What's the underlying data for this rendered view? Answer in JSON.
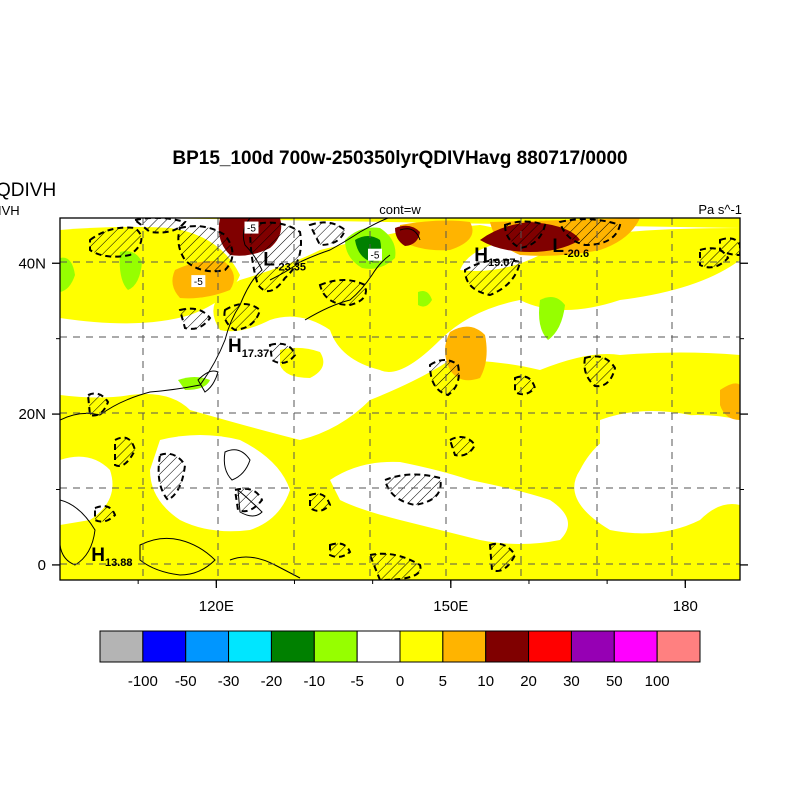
{
  "title": "BP15_100d 700w-250350lyrQDIVHavg  880717/0000",
  "left_title": "QDIVH",
  "left_subtitle": "IVH",
  "center_label": "cont=w",
  "units": "Pa s^-1",
  "axes": {
    "x_ticks": [
      {
        "lon": 120,
        "label": "120E"
      },
      {
        "lon": 150,
        "label": "150E"
      },
      {
        "lon": 180,
        "label": "180"
      }
    ],
    "y_ticks": [
      {
        "lat": 40,
        "label": "40N"
      },
      {
        "lat": 20,
        "label": "20N"
      },
      {
        "lat": 0,
        "label": "0"
      }
    ],
    "lon_range": [
      100,
      187
    ],
    "lat_range": [
      -2,
      46
    ]
  },
  "extrema": [
    {
      "type": "H",
      "value": "17.37",
      "lon": 121.5,
      "lat": 28.2
    },
    {
      "type": "L",
      "value": "-23.35",
      "lon": 126.0,
      "lat": 39.7
    },
    {
      "type": "H",
      "value": "19.07",
      "lon": 153.0,
      "lat": 40.3
    },
    {
      "type": "L",
      "value": "-20.6",
      "lon": 163.0,
      "lat": 41.5
    },
    {
      "type": "H",
      "value": "13.88",
      "lon": 104.0,
      "lat": 0.5
    }
  ],
  "contour_labels": [
    {
      "text": "-5",
      "lon": 124.5,
      "lat": 44.6
    },
    {
      "text": "-5",
      "lon": 117.7,
      "lat": 37.5
    },
    {
      "text": "-5",
      "lon": 140.3,
      "lat": 41.0
    }
  ],
  "colorbar": {
    "colors": [
      "#b4b4b4",
      "#0000ff",
      "#0096ff",
      "#00e6ff",
      "#008000",
      "#96ff00",
      "#ffffff",
      "#ffff00",
      "#ffb400",
      "#800000",
      "#ff0000",
      "#9600b4",
      "#ff00ff",
      "#ff8080"
    ],
    "labels": [
      "-100",
      "-50",
      "-30",
      "-20",
      "-10",
      "-5",
      "0",
      "5",
      "10",
      "20",
      "30",
      "50",
      "100"
    ]
  }
}
